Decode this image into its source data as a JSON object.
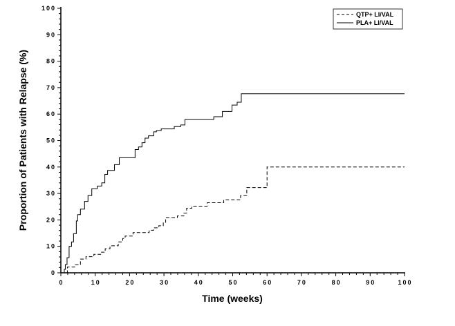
{
  "chart_data": {
    "type": "line",
    "title": "",
    "xlabel": "Time (weeks)",
    "ylabel": "Proportion of Patients with Relapse (%)",
    "xlim": [
      0,
      100
    ],
    "ylim": [
      0,
      100
    ],
    "xticks": [
      "0",
      "10",
      "20",
      "30",
      "40",
      "50",
      "60",
      "70",
      "80",
      "90",
      "100"
    ],
    "yticks": [
      "0",
      "10",
      "20",
      "30",
      "40",
      "50",
      "60",
      "70",
      "80",
      "90",
      "100"
    ],
    "grid": false,
    "legend_position": "top-right",
    "series": [
      {
        "name": "QTP+ LI/VAL",
        "style": "dashed",
        "step": true,
        "points": [
          [
            0,
            0
          ],
          [
            1.9,
            2.2
          ],
          [
            4,
            3
          ],
          [
            5.7,
            5.2
          ],
          [
            7.3,
            6.1
          ],
          [
            9.6,
            7
          ],
          [
            11.6,
            7.8
          ],
          [
            12.9,
            9.1
          ],
          [
            14.3,
            10.2
          ],
          [
            16.7,
            11.7
          ],
          [
            18,
            13
          ],
          [
            18.7,
            13.9
          ],
          [
            21,
            15.2
          ],
          [
            25.7,
            16.1
          ],
          [
            27,
            17
          ],
          [
            28.5,
            17.8
          ],
          [
            29.8,
            19.1
          ],
          [
            30.5,
            20.9
          ],
          [
            33.9,
            21.5
          ],
          [
            35.8,
            22.6
          ],
          [
            36.6,
            24.4
          ],
          [
            38.1,
            25.2
          ],
          [
            42.6,
            26.5
          ],
          [
            47.4,
            27.6
          ],
          [
            52.3,
            29.2
          ],
          [
            54.1,
            32.2
          ],
          [
            60,
            40
          ],
          [
            100,
            40
          ]
        ]
      },
      {
        "name": "PLA+ LI/VAL",
        "style": "solid",
        "step": true,
        "points": [
          [
            0,
            0
          ],
          [
            1,
            1.3
          ],
          [
            1.3,
            3.1
          ],
          [
            1.8,
            5.7
          ],
          [
            2.4,
            10
          ],
          [
            3.1,
            11.7
          ],
          [
            3.7,
            14.8
          ],
          [
            4.5,
            19.6
          ],
          [
            4.9,
            22
          ],
          [
            5.7,
            24.1
          ],
          [
            6.9,
            27
          ],
          [
            7.9,
            29.2
          ],
          [
            9,
            31.8
          ],
          [
            10.6,
            32.8
          ],
          [
            11.9,
            34
          ],
          [
            12.8,
            37.2
          ],
          [
            13.6,
            38.7
          ],
          [
            15.6,
            40.9
          ],
          [
            17,
            43.5
          ],
          [
            20.4,
            43.5
          ],
          [
            21.6,
            46.6
          ],
          [
            22.6,
            47.6
          ],
          [
            23.6,
            49.2
          ],
          [
            24.5,
            50.9
          ],
          [
            25.5,
            51.8
          ],
          [
            27,
            53.3
          ],
          [
            27.8,
            53.8
          ],
          [
            29.2,
            54.4
          ],
          [
            33,
            55.3
          ],
          [
            34.9,
            55.9
          ],
          [
            36.1,
            58
          ],
          [
            44.5,
            59
          ],
          [
            47,
            61
          ],
          [
            49.8,
            63.4
          ],
          [
            51.3,
            64.5
          ],
          [
            52.5,
            67.7
          ],
          [
            100,
            67.7
          ]
        ]
      }
    ]
  }
}
